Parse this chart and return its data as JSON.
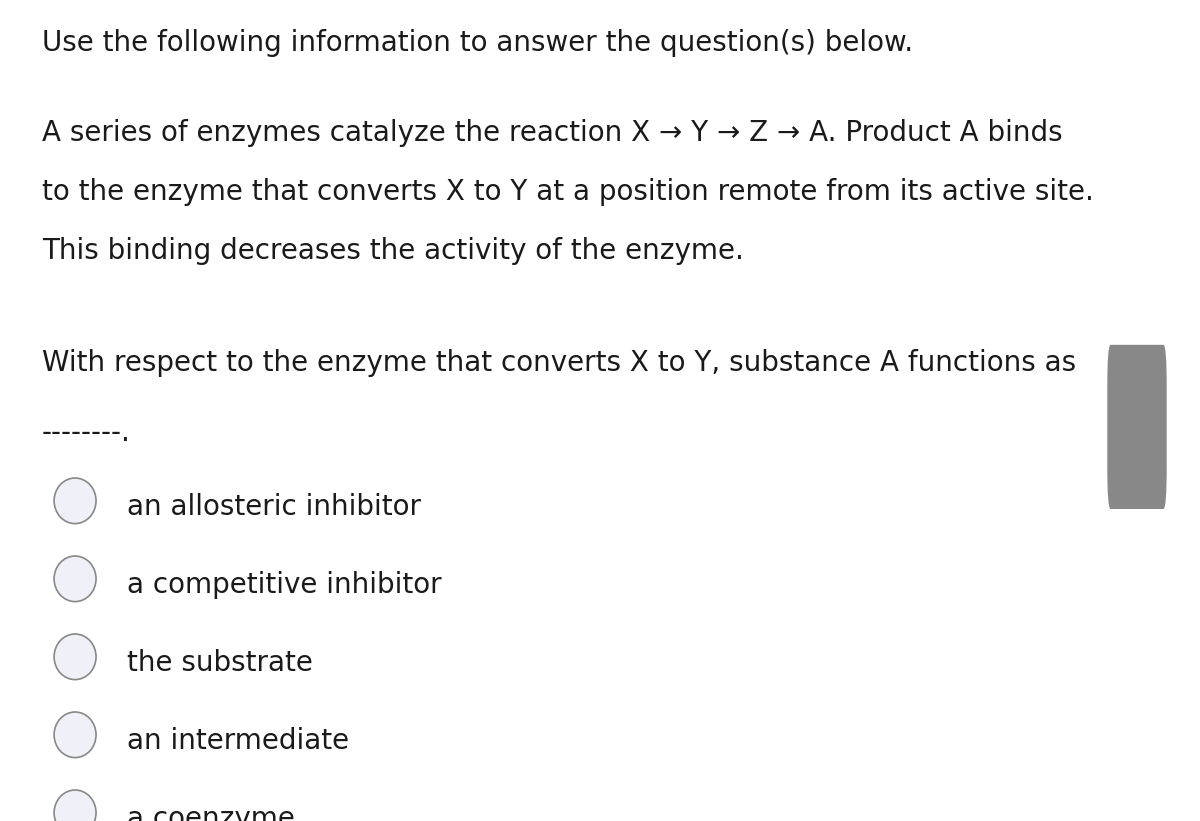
{
  "background_color": "#ffffff",
  "scrollbar_color": "#1a1a1a",
  "scrollbar_indicator_color": "#888888",
  "right_accent_color": "#f0c800",
  "header_text": "Use the following information to answer the question(s) below.",
  "paragraph_line1": "A series of enzymes catalyze the reaction X → Y → Z → A. Product A binds",
  "paragraph_line2": "to the enzyme that converts X to Y at a position remote from its active site.",
  "paragraph_line3": "This binding decreases the activity of the enzyme.",
  "question_text": "With respect to the enzyme that converts X to Y, substance A functions as",
  "blank_text": "--------.",
  "choices": [
    "an allosteric inhibitor",
    "a competitive inhibitor",
    "the substrate",
    "an intermediate",
    "a coenzyme"
  ],
  "font_size": 20,
  "text_color": "#1a1a1a",
  "circle_ec": "#888888",
  "circle_lw": 1.2
}
